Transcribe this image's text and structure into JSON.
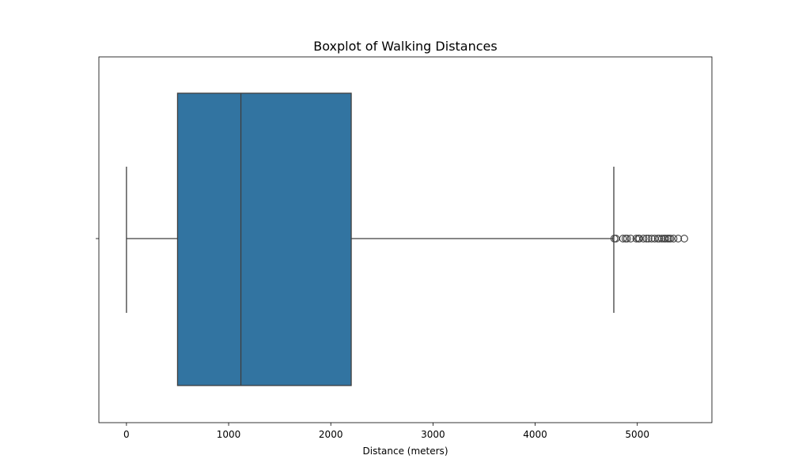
{
  "chart_data": {
    "type": "box",
    "title": "Boxplot of Walking Distances",
    "xlabel": "Distance (meters)",
    "ylabel": "",
    "xlim": [
      -270,
      5730
    ],
    "xticks": [
      0,
      1000,
      2000,
      3000,
      4000,
      5000
    ],
    "xtick_labels": [
      "0",
      "1000",
      "2000",
      "3000",
      "4000",
      "5000"
    ],
    "orientation": "horizontal",
    "grid": false,
    "series": [
      {
        "whisker_low": 0,
        "q1": 500,
        "median": 1120,
        "q3": 2200,
        "whisker_high": 4770,
        "outliers": [
          4775,
          4790,
          4860,
          4885,
          4900,
          4935,
          4990,
          5010,
          5020,
          5060,
          5090,
          5110,
          5140,
          5170,
          5200,
          5215,
          5240,
          5260,
          5275,
          5295,
          5310,
          5325,
          5355,
          5400,
          5460
        ],
        "color": "#3274a1"
      }
    ]
  }
}
